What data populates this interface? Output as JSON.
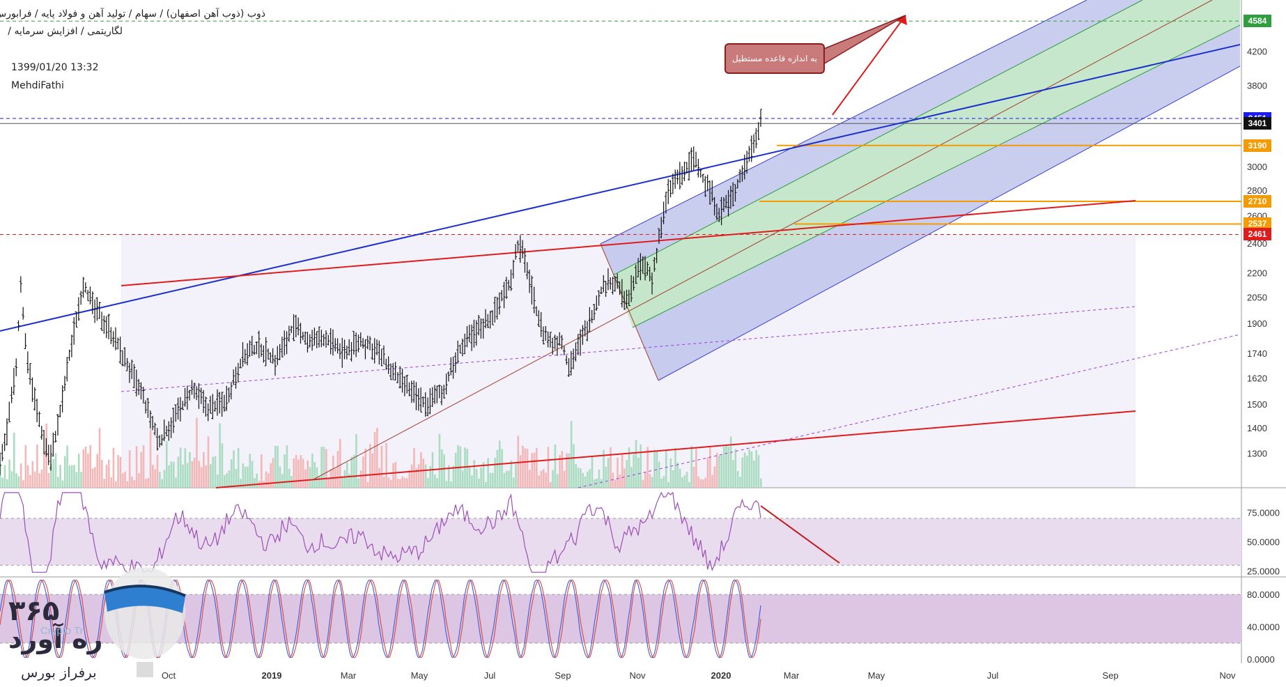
{
  "header": {
    "breadcrumb_line1": "ذوب (ذوب آهن اصفهان) / سهام / تولید آهن و فولاد پایه / فرابورس",
    "breadcrumb_line2": "لگاریتمی / افزایش سرمایه /",
    "datetime": "1399/01/20 13:32",
    "author": "MehdiFathi"
  },
  "callout": {
    "text": "به اندازه قاعده مستطیل"
  },
  "logo": {
    "number": "۳۶۵",
    "word": "ره آورد",
    "sub": "برفراز بورس",
    "faint": "Crypto Tr"
  },
  "colors": {
    "candle": "#111111",
    "vol_up": "#a9dcc0",
    "vol_down": "#f3b7b7",
    "channel_outer": "#b8bde8",
    "channel_inner": "#c6ebc6",
    "blue_line": "#1a2fcc",
    "red_line": "#e01b1b",
    "orange": "#f59b00",
    "rsi_band": "#eadcef",
    "stoch_band": "#dcc6e4"
  },
  "chart_data": [
    {
      "type": "ohlc",
      "title": "ذوب (ذوب آهن اصفهان)",
      "scale": "log",
      "ylim": [
        1200,
        4700
      ],
      "y_ticks": [
        1300,
        1400,
        1500,
        1620,
        1740,
        1900,
        2050,
        2200,
        2400,
        2600,
        2800,
        3000,
        3190,
        3401,
        3800,
        4200,
        4584
      ],
      "x_tick_labels": [
        "Oct",
        "2019",
        "Mar",
        "May",
        "Jul",
        "Sep",
        "Nov",
        "2020",
        "Mar",
        "May",
        "Jul",
        "Sep",
        "Nov"
      ],
      "price_labels": [
        {
          "value": 4584,
          "color": "#2e9e3e"
        },
        {
          "value": 3451,
          "color": "#1a1aff"
        },
        {
          "value": 3401,
          "color": "#111111"
        },
        {
          "value": 3190,
          "color": "#f59b00"
        },
        {
          "value": 2710,
          "color": "#f59b00"
        },
        {
          "value": 2537,
          "color": "#f59b00"
        },
        {
          "value": 2461,
          "color": "#e01b1b"
        }
      ],
      "price_path": [
        [
          0.0,
          1250
        ],
        [
          0.01,
          1420
        ],
        [
          0.02,
          1700
        ],
        [
          0.025,
          2150
        ],
        [
          0.03,
          1800
        ],
        [
          0.04,
          1550
        ],
        [
          0.05,
          1380
        ],
        [
          0.06,
          1280
        ],
        [
          0.07,
          1420
        ],
        [
          0.08,
          1650
        ],
        [
          0.09,
          1900
        ],
        [
          0.1,
          2150
        ],
        [
          0.11,
          2000
        ],
        [
          0.13,
          1880
        ],
        [
          0.15,
          1700
        ],
        [
          0.17,
          1540
        ],
        [
          0.19,
          1340
        ],
        [
          0.21,
          1450
        ],
        [
          0.23,
          1560
        ],
        [
          0.25,
          1480
        ],
        [
          0.27,
          1520
        ],
        [
          0.29,
          1720
        ],
        [
          0.31,
          1780
        ],
        [
          0.33,
          1700
        ],
        [
          0.35,
          1880
        ],
        [
          0.37,
          1800
        ],
        [
          0.39,
          1820
        ],
        [
          0.41,
          1740
        ],
        [
          0.43,
          1800
        ],
        [
          0.45,
          1760
        ],
        [
          0.47,
          1640
        ],
        [
          0.49,
          1560
        ],
        [
          0.51,
          1500
        ],
        [
          0.53,
          1560
        ],
        [
          0.55,
          1760
        ],
        [
          0.57,
          1860
        ],
        [
          0.59,
          1950
        ],
        [
          0.61,
          2150
        ],
        [
          0.62,
          2400
        ],
        [
          0.63,
          2250
        ],
        [
          0.64,
          2000
        ],
        [
          0.65,
          1850
        ],
        [
          0.66,
          1780
        ],
        [
          0.67,
          1820
        ],
        [
          0.68,
          1680
        ],
        [
          0.69,
          1760
        ],
        [
          0.7,
          1850
        ],
        [
          0.71,
          1980
        ],
        [
          0.72,
          2100
        ],
        [
          0.73,
          2150
        ],
        [
          0.74,
          2120
        ],
        [
          0.75,
          2000
        ],
        [
          0.76,
          2200
        ],
        [
          0.77,
          2250
        ],
        [
          0.78,
          2150
        ],
        [
          0.79,
          2500
        ],
        [
          0.8,
          2800
        ],
        [
          0.81,
          2900
        ],
        [
          0.82,
          2950
        ],
        [
          0.83,
          3100
        ],
        [
          0.84,
          2900
        ],
        [
          0.85,
          2800
        ],
        [
          0.86,
          2620
        ],
        [
          0.87,
          2700
        ],
        [
          0.88,
          2800
        ],
        [
          0.89,
          3000
        ],
        [
          0.9,
          3200
        ],
        [
          0.91,
          3451
        ]
      ]
    },
    {
      "type": "line",
      "title": "RSI",
      "ylim": [
        20,
        95
      ],
      "y_ticks": [
        25,
        50,
        75
      ],
      "y_tick_labels": [
        "25.0000",
        "50.0000",
        "75.0000"
      ],
      "band": [
        30,
        70
      ]
    },
    {
      "type": "line",
      "title": "Stochastic",
      "ylim": [
        -5,
        100
      ],
      "y_ticks": [
        0,
        40,
        80
      ],
      "y_tick_labels": [
        "0.0000",
        "40.0000",
        "80.0000"
      ],
      "band": [
        20,
        80
      ]
    }
  ]
}
